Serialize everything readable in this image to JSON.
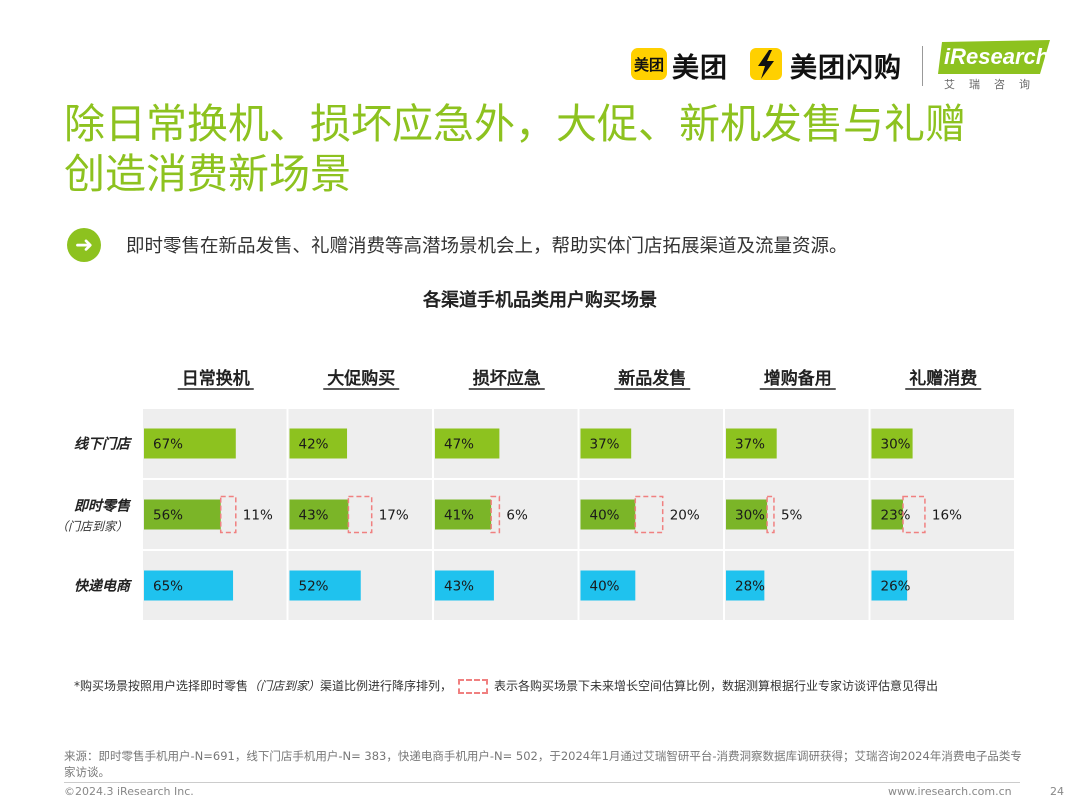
{
  "logos": {
    "meituan_icon": "美团",
    "meituan": "美团",
    "meituan_shangou": "美团闪购",
    "iresearch": "iResearch",
    "iresearch_cn": "艾瑞咨询"
  },
  "title": {
    "line1": "除日常换机、损坏应急外，大促、新机发售与礼赠",
    "line2": "创造消费新场景"
  },
  "subtitle": "即时零售在新品发售、礼赠消费等高潜场景机会上，帮助实体门店拓展渠道及流量资源。",
  "chart_data": {
    "type": "bar",
    "title": "各渠道手机品类用户购买场景",
    "categories": [
      "日常换机",
      "大促购买",
      "损坏应急",
      "新品发售",
      "增购备用",
      "礼赠消费"
    ],
    "series": [
      {
        "name": "线下门店",
        "values": [
          67,
          42,
          47,
          37,
          37,
          30
        ],
        "color": "#8DC21F"
      },
      {
        "name": "即时零售",
        "sub": "（门店到家）",
        "values": [
          56,
          43,
          41,
          40,
          30,
          23
        ],
        "growth": [
          11,
          17,
          6,
          20,
          5,
          16
        ],
        "color": "#7BB528"
      },
      {
        "name": "快递电商",
        "values": [
          65,
          52,
          43,
          40,
          28,
          26
        ],
        "color": "#1FC2EE"
      }
    ],
    "unit": "%",
    "growth_dash_color": "#F08080"
  },
  "footnote": {
    "before": "*购买场景按照用户选择即时零售",
    "italic": "（门店到家）",
    "middle": "渠道比例进行降序排列，",
    "after": "表示各购买场景下未来增长空间估算比例，数据测算根据行业专家访谈评估意见得出"
  },
  "source": "来源：即时零售手机用户-N=691，线下门店手机用户-N= 383，快递电商手机用户-N= 502，于2024年1月通过艾瑞智研平台-消费洞察数据库调研获得；艾瑞咨询2024年消费电子品类专家访谈。",
  "copyright": "©2024.3 iResearch Inc.",
  "website": "www.iresearch.com.cn",
  "page_number": "24"
}
